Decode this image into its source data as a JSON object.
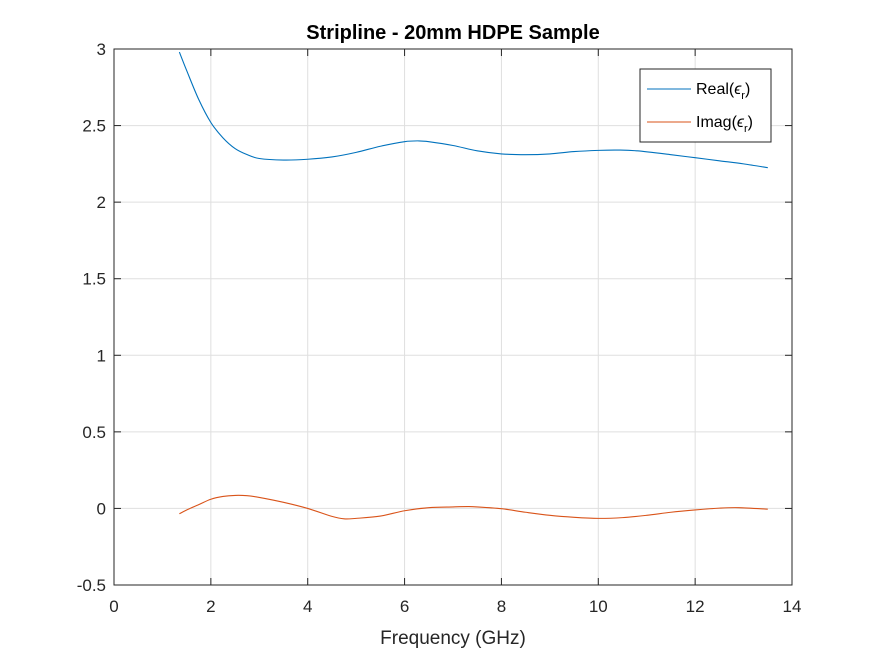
{
  "chart_data": {
    "type": "line",
    "title": "Stripline - 20mm HDPE Sample",
    "xlabel": "Frequency (GHz)",
    "ylabel": "",
    "xlim": [
      0,
      14
    ],
    "ylim": [
      -0.5,
      3
    ],
    "xticks": [
      0,
      2,
      4,
      6,
      8,
      10,
      12,
      14
    ],
    "xtick_labels": [
      "0",
      "2",
      "4",
      "6",
      "8",
      "10",
      "12",
      "14"
    ],
    "yticks": [
      -0.5,
      0,
      0.5,
      1,
      1.5,
      2,
      2.5,
      3
    ],
    "ytick_labels": [
      "-0.5",
      "0",
      "0.5",
      "1",
      "1.5",
      "2",
      "2.5",
      "3"
    ],
    "grid": true,
    "legend": {
      "position": "top-right",
      "entries": [
        {
          "base": "Real(",
          "symbol": "ϵ",
          "sub": "r",
          "close": ")"
        },
        {
          "base": "Imag(",
          "symbol": "ϵ",
          "sub": "r",
          "close": ")"
        }
      ]
    },
    "series": [
      {
        "name": "Real(ϵr)",
        "color": "#0072BD",
        "x": [
          1.35,
          1.5,
          1.75,
          2.0,
          2.25,
          2.5,
          2.75,
          3.0,
          3.5,
          4.0,
          4.5,
          5.0,
          5.5,
          6.0,
          6.3,
          6.5,
          7.0,
          7.5,
          8.0,
          8.5,
          9.0,
          9.5,
          10.0,
          10.4,
          10.8,
          11.5,
          12.0,
          12.5,
          13.0,
          13.5
        ],
        "y": [
          2.98,
          2.86,
          2.67,
          2.52,
          2.42,
          2.35,
          2.31,
          2.285,
          2.275,
          2.28,
          2.295,
          2.325,
          2.365,
          2.395,
          2.4,
          2.395,
          2.37,
          2.335,
          2.315,
          2.31,
          2.315,
          2.33,
          2.338,
          2.34,
          2.335,
          2.31,
          2.29,
          2.27,
          2.25,
          2.225
        ]
      },
      {
        "name": "Imag(ϵr)",
        "color": "#D95319",
        "x": [
          1.35,
          1.5,
          1.75,
          2.0,
          2.25,
          2.5,
          2.75,
          3.0,
          3.5,
          4.0,
          4.5,
          4.75,
          5.0,
          5.5,
          6.0,
          6.5,
          7.0,
          7.3,
          7.5,
          8.0,
          8.5,
          9.0,
          9.5,
          10.0,
          10.5,
          11.0,
          11.5,
          12.0,
          12.5,
          12.9,
          13.5
        ],
        "y": [
          -0.035,
          -0.01,
          0.025,
          0.06,
          0.078,
          0.085,
          0.083,
          0.072,
          0.04,
          0.0,
          -0.052,
          -0.068,
          -0.065,
          -0.05,
          -0.015,
          0.005,
          0.01,
          0.012,
          0.01,
          -0.002,
          -0.025,
          -0.045,
          -0.058,
          -0.065,
          -0.06,
          -0.045,
          -0.025,
          -0.01,
          0.002,
          0.005,
          -0.005
        ]
      }
    ]
  }
}
